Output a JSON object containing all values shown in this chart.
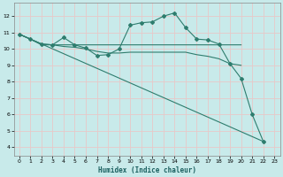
{
  "background_color": "#c8eaea",
  "grid_color": "#e8c8c8",
  "line_color": "#2e7d6e",
  "xlabel": "Humidex (Indice chaleur)",
  "xlim": [
    -0.5,
    23.5
  ],
  "ylim": [
    3.5,
    12.8
  ],
  "yticks": [
    4,
    5,
    6,
    7,
    8,
    9,
    10,
    11,
    12
  ],
  "xticks": [
    0,
    1,
    2,
    3,
    4,
    5,
    6,
    7,
    8,
    9,
    10,
    11,
    12,
    13,
    14,
    15,
    16,
    17,
    18,
    19,
    20,
    21,
    22,
    23
  ],
  "lines": [
    {
      "x": [
        0,
        1,
        2,
        3,
        4,
        5,
        6,
        7,
        8,
        9,
        10,
        11,
        12,
        13,
        14,
        15,
        16,
        17,
        18,
        19,
        20,
        21,
        22
      ],
      "y": [
        10.9,
        10.6,
        10.3,
        10.25,
        10.7,
        10.25,
        10.05,
        9.6,
        9.65,
        10.0,
        11.45,
        11.6,
        11.65,
        12.0,
        12.2,
        11.3,
        10.6,
        10.55,
        10.3,
        9.1,
        8.2,
        6.0,
        4.35
      ],
      "marker": true
    },
    {
      "x": [
        0,
        1,
        2,
        3,
        4,
        5,
        6,
        7,
        8,
        9,
        10,
        11,
        12,
        13,
        14,
        15,
        16,
        17,
        18,
        19,
        20
      ],
      "y": [
        10.9,
        10.6,
        10.25,
        10.25,
        10.25,
        10.25,
        10.25,
        10.25,
        10.25,
        10.25,
        10.25,
        10.25,
        10.25,
        10.25,
        10.25,
        10.25,
        10.25,
        10.25,
        10.25,
        10.25,
        10.25
      ],
      "marker": false
    },
    {
      "x": [
        0,
        1,
        2,
        3,
        4,
        5,
        6,
        7,
        8,
        9,
        10,
        11,
        12,
        13,
        14,
        15,
        16,
        17,
        18,
        19,
        20
      ],
      "y": [
        10.9,
        10.6,
        10.3,
        10.25,
        10.15,
        10.1,
        10.0,
        9.85,
        9.75,
        9.75,
        9.8,
        9.8,
        9.8,
        9.8,
        9.8,
        9.8,
        9.65,
        9.55,
        9.4,
        9.1,
        9.0
      ],
      "marker": false
    },
    {
      "x": [
        0,
        22
      ],
      "y": [
        10.9,
        4.35
      ],
      "marker": false
    }
  ]
}
